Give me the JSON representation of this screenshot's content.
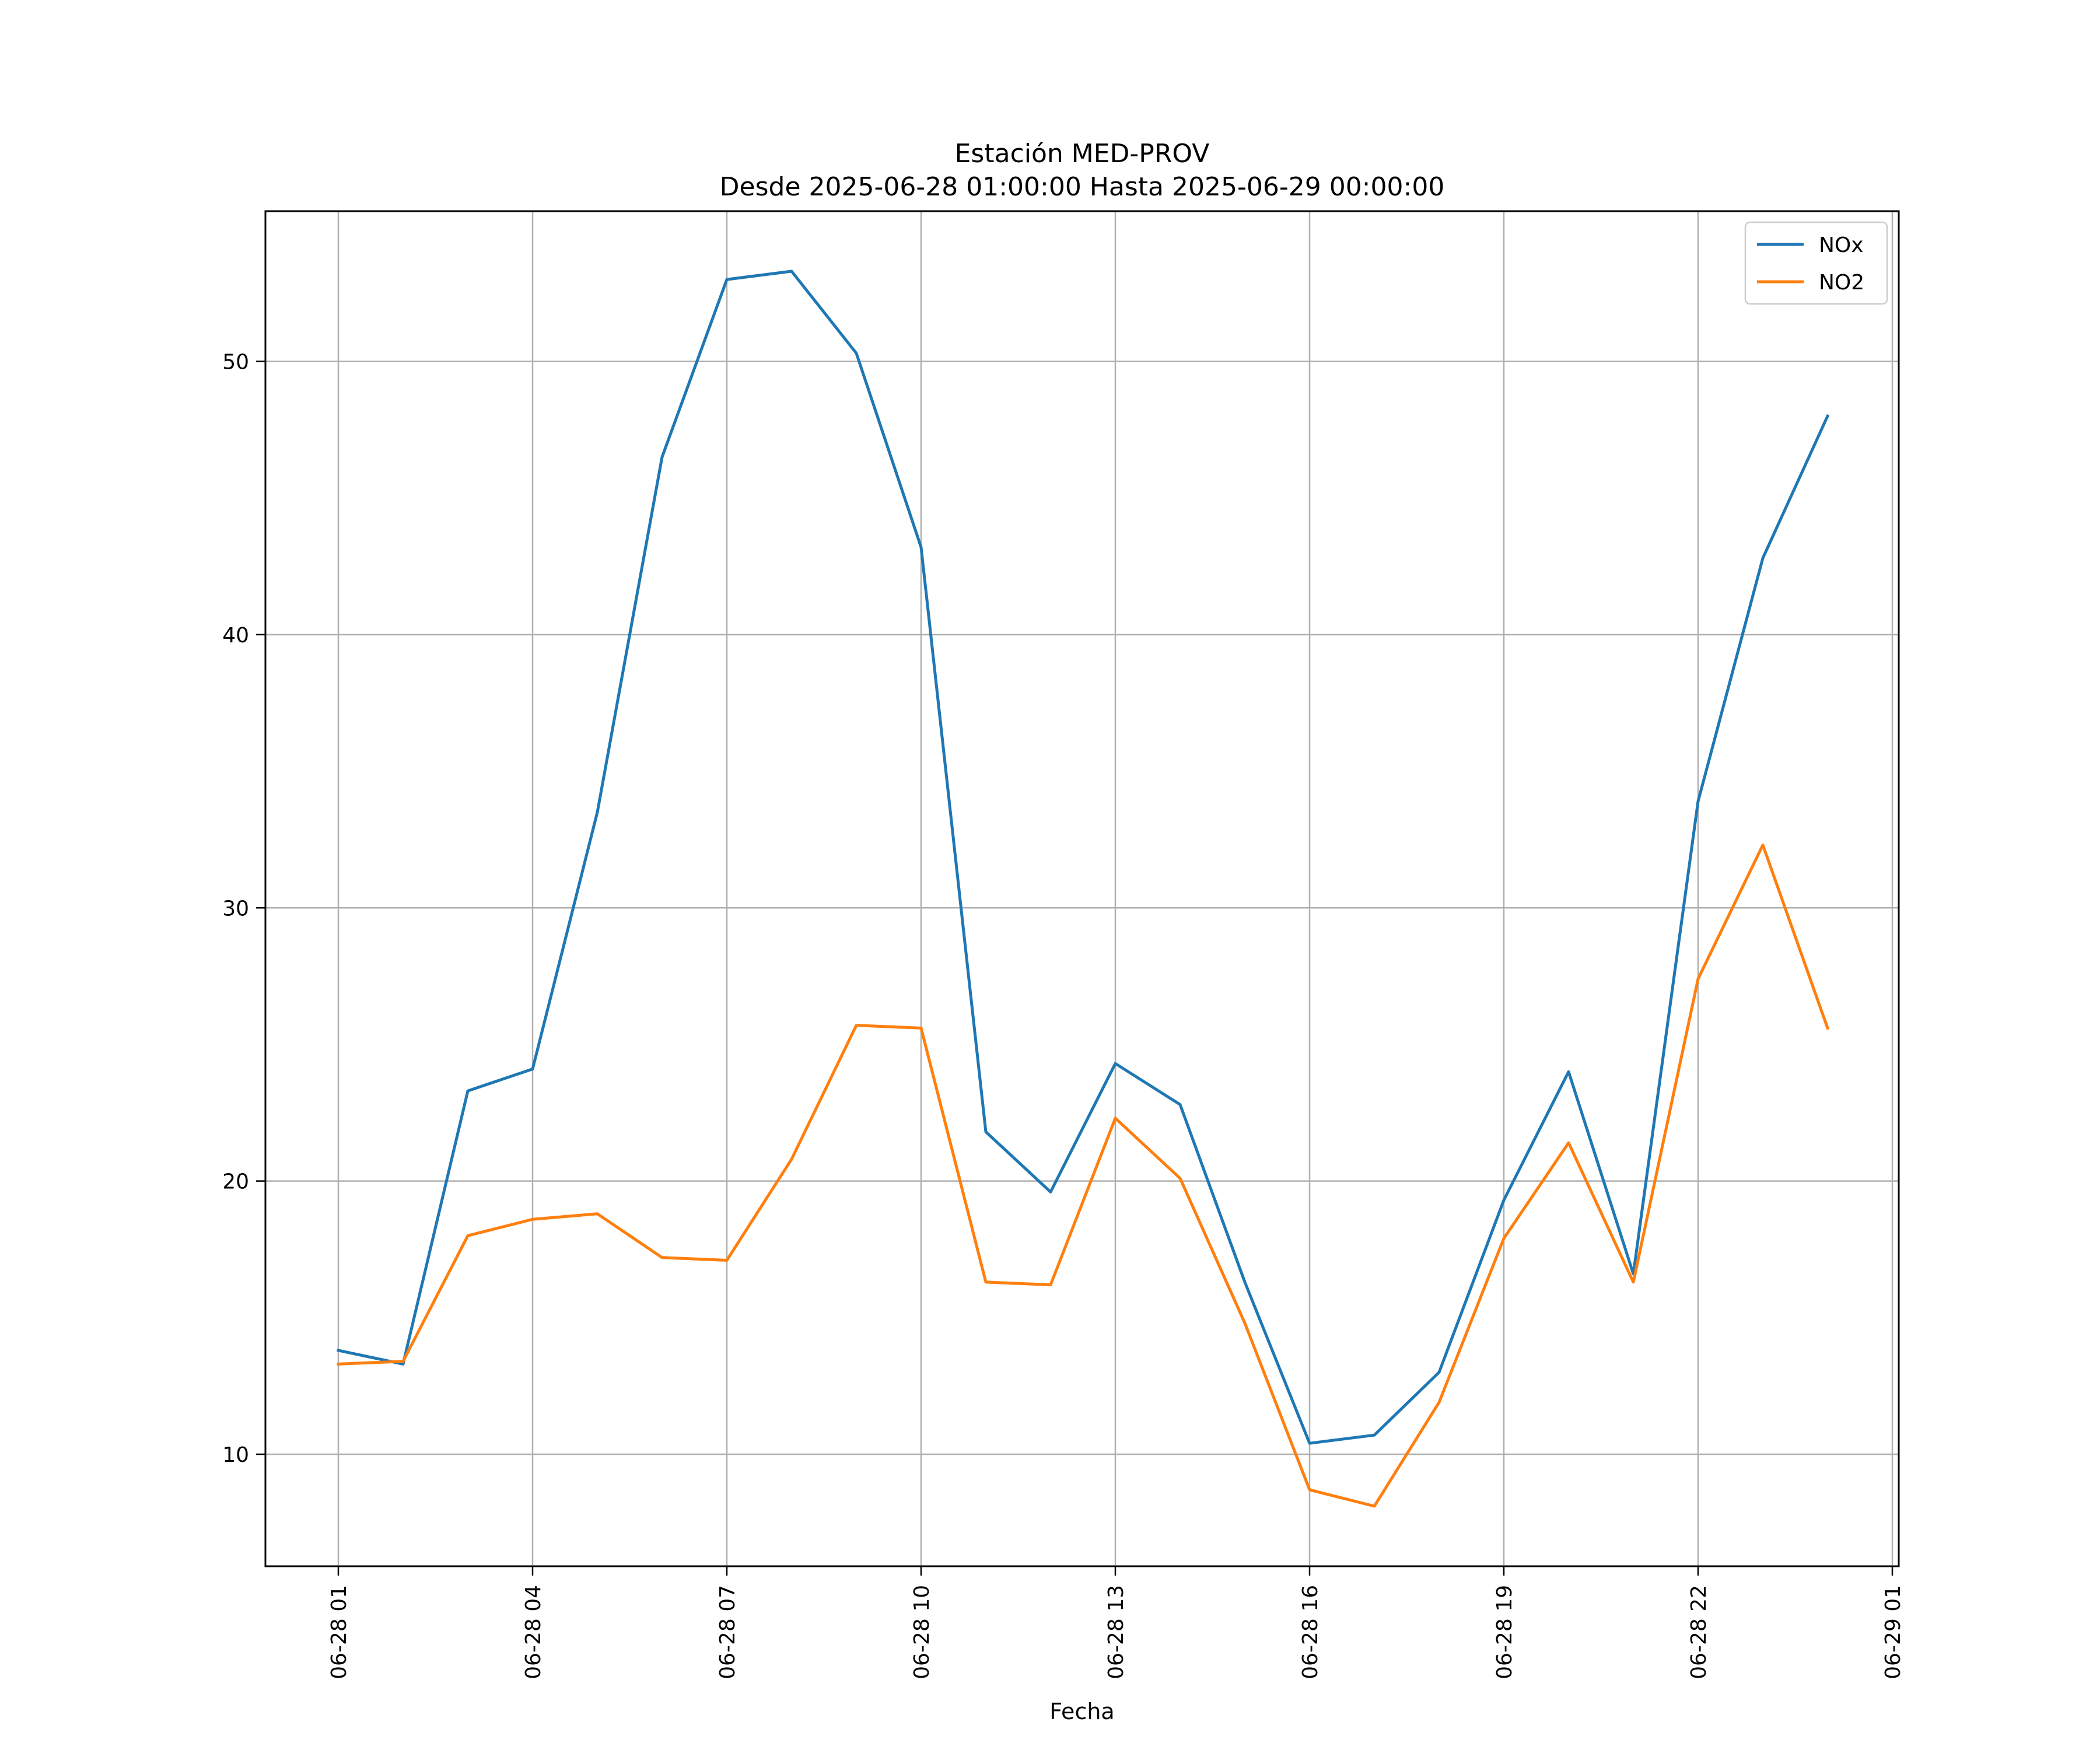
{
  "chart_data": {
    "type": "line",
    "title_line1": "Estación MED-PROV",
    "title_line2": "Desde 2025-06-28 01:00:00 Hasta 2025-06-29 00:00:00",
    "xlabel": "Fecha",
    "ylabel": "",
    "x_ticks": [
      "06-28 01",
      "06-28 04",
      "06-28 07",
      "06-28 10",
      "06-28 13",
      "06-28 16",
      "06-28 19",
      "06-28 22",
      "06-29 01"
    ],
    "y_ticks": [
      10,
      20,
      30,
      40,
      50
    ],
    "ylim": [
      5.9,
      55.5
    ],
    "grid": true,
    "legend_position": "top-right",
    "x": [
      "06-28 01:00",
      "06-28 02:00",
      "06-28 03:00",
      "06-28 04:00",
      "06-28 05:00",
      "06-28 06:00",
      "06-28 07:00",
      "06-28 08:00",
      "06-28 09:00",
      "06-28 10:00",
      "06-28 11:00",
      "06-28 12:00",
      "06-28 13:00",
      "06-28 14:00",
      "06-28 15:00",
      "06-28 16:00",
      "06-28 17:00",
      "06-28 18:00",
      "06-28 19:00",
      "06-28 20:00",
      "06-28 21:00",
      "06-28 22:00",
      "06-28 23:00",
      "06-29 00:00"
    ],
    "series": [
      {
        "name": "NOx",
        "color": "#1f77b4",
        "values": [
          13.8,
          13.3,
          23.3,
          24.1,
          33.5,
          46.5,
          53.0,
          53.3,
          50.3,
          43.2,
          21.8,
          19.6,
          24.3,
          22.8,
          16.3,
          10.4,
          10.7,
          13.0,
          19.3,
          24.0,
          16.6,
          33.9,
          42.8,
          48.0
        ]
      },
      {
        "name": "NO2",
        "color": "#ff7f0e",
        "values": [
          13.3,
          13.4,
          18.0,
          18.6,
          18.8,
          17.2,
          17.1,
          20.8,
          25.7,
          25.6,
          16.3,
          16.2,
          22.3,
          20.1,
          14.8,
          8.7,
          8.1,
          11.9,
          17.9,
          21.4,
          16.3,
          27.4,
          32.3,
          25.6
        ]
      }
    ]
  }
}
